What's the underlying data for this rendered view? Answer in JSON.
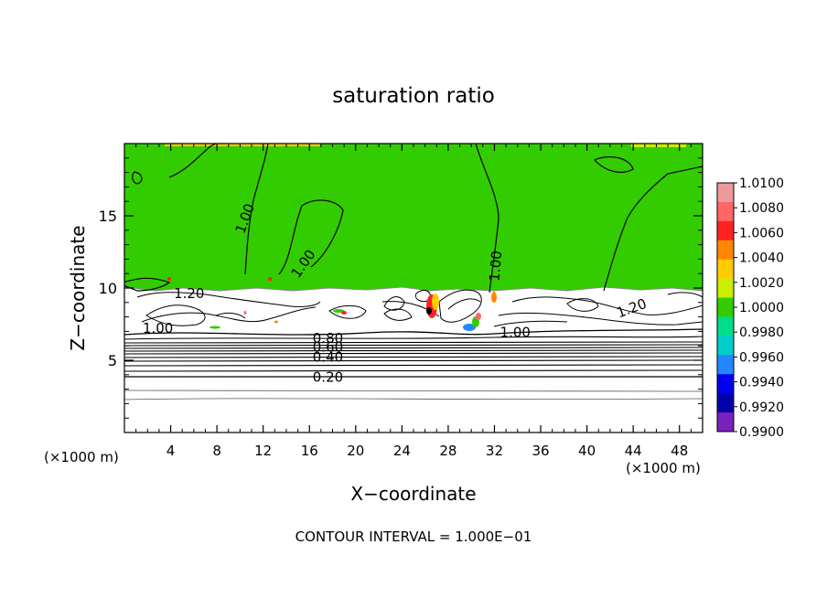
{
  "chart_data": {
    "type": "contour",
    "title": "saturation ratio",
    "xlabel": "X−coordinate",
    "ylabel": "Z−coordinate",
    "x_unit_left": "(×1000 m)",
    "x_unit_right": "(×1000 m)",
    "xlim": [
      0,
      50
    ],
    "ylim": [
      0,
      20
    ],
    "x_ticks": [
      4,
      8,
      12,
      16,
      20,
      24,
      28,
      32,
      36,
      40,
      44,
      48
    ],
    "y_ticks": [
      5,
      10,
      15
    ],
    "footer": "CONTOUR INTERVAL = 1.000E−01",
    "colorbar": {
      "levels": [
        "1.0100",
        "1.0080",
        "1.0060",
        "1.0040",
        "1.0020",
        "1.0000",
        "0.9980",
        "0.9960",
        "0.9940",
        "0.9920",
        "0.9900"
      ],
      "colors": [
        "#ee9999",
        "#ff6666",
        "#ff2222",
        "#ff8800",
        "#ffcc00",
        "#ccee00",
        "#33cc00",
        "#00dd88",
        "#00cccc",
        "#2288ff",
        "#0000ee",
        "#0000aa",
        "#7722bb"
      ]
    },
    "contour_labels": [
      {
        "text": "1.00",
        "x": 10.8,
        "y": 14.7,
        "rotate": -70
      },
      {
        "text": "1.00",
        "x": 15.8,
        "y": 11.5,
        "rotate": -55
      },
      {
        "text": "1.00",
        "x": 32.5,
        "y": 11.5,
        "rotate": -85
      },
      {
        "text": "1.20",
        "x": 5.6,
        "y": 9.3,
        "rotate": 0
      },
      {
        "text": "1.20",
        "x": 44.0,
        "y": 8.3,
        "rotate": -20
      },
      {
        "text": "1.00",
        "x": 2.9,
        "y": 6.9,
        "rotate": 0
      },
      {
        "text": "1.00",
        "x": 33.8,
        "y": 6.6,
        "rotate": 0
      },
      {
        "text": "0.80",
        "x": 17.6,
        "y": 6.2,
        "rotate": 0
      },
      {
        "text": "0.60",
        "x": 17.6,
        "y": 5.6,
        "rotate": 0
      },
      {
        "text": "0.40",
        "x": 17.6,
        "y": 4.9,
        "rotate": 0
      },
      {
        "text": "0.20",
        "x": 17.6,
        "y": 3.5,
        "rotate": 0
      }
    ]
  }
}
